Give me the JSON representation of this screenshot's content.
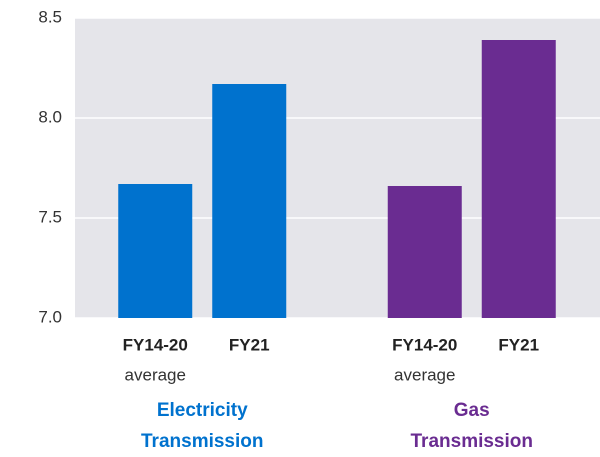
{
  "chart_data": {
    "type": "grouped-bar",
    "groups": [
      {
        "name": "Electricity Transmission",
        "color": "#0072ce",
        "categories": [
          "FY14-20",
          "FY21"
        ],
        "category_notes": [
          "average",
          null
        ],
        "values": [
          7.67,
          8.17
        ]
      },
      {
        "name": "Gas Transmission",
        "color": "#6a2c91",
        "categories": [
          "FY14-20",
          "FY21"
        ],
        "category_notes": [
          "average",
          null
        ],
        "values": [
          7.66,
          8.39
        ]
      }
    ],
    "ylim": [
      7.0,
      8.5
    ],
    "yticks": [
      {
        "value": 7.0,
        "label": "7.0"
      },
      7.5,
      {
        "value": 8.0,
        "label": "8.0"
      },
      8.5
    ],
    "grid": true,
    "background": "#e5e5ea"
  }
}
